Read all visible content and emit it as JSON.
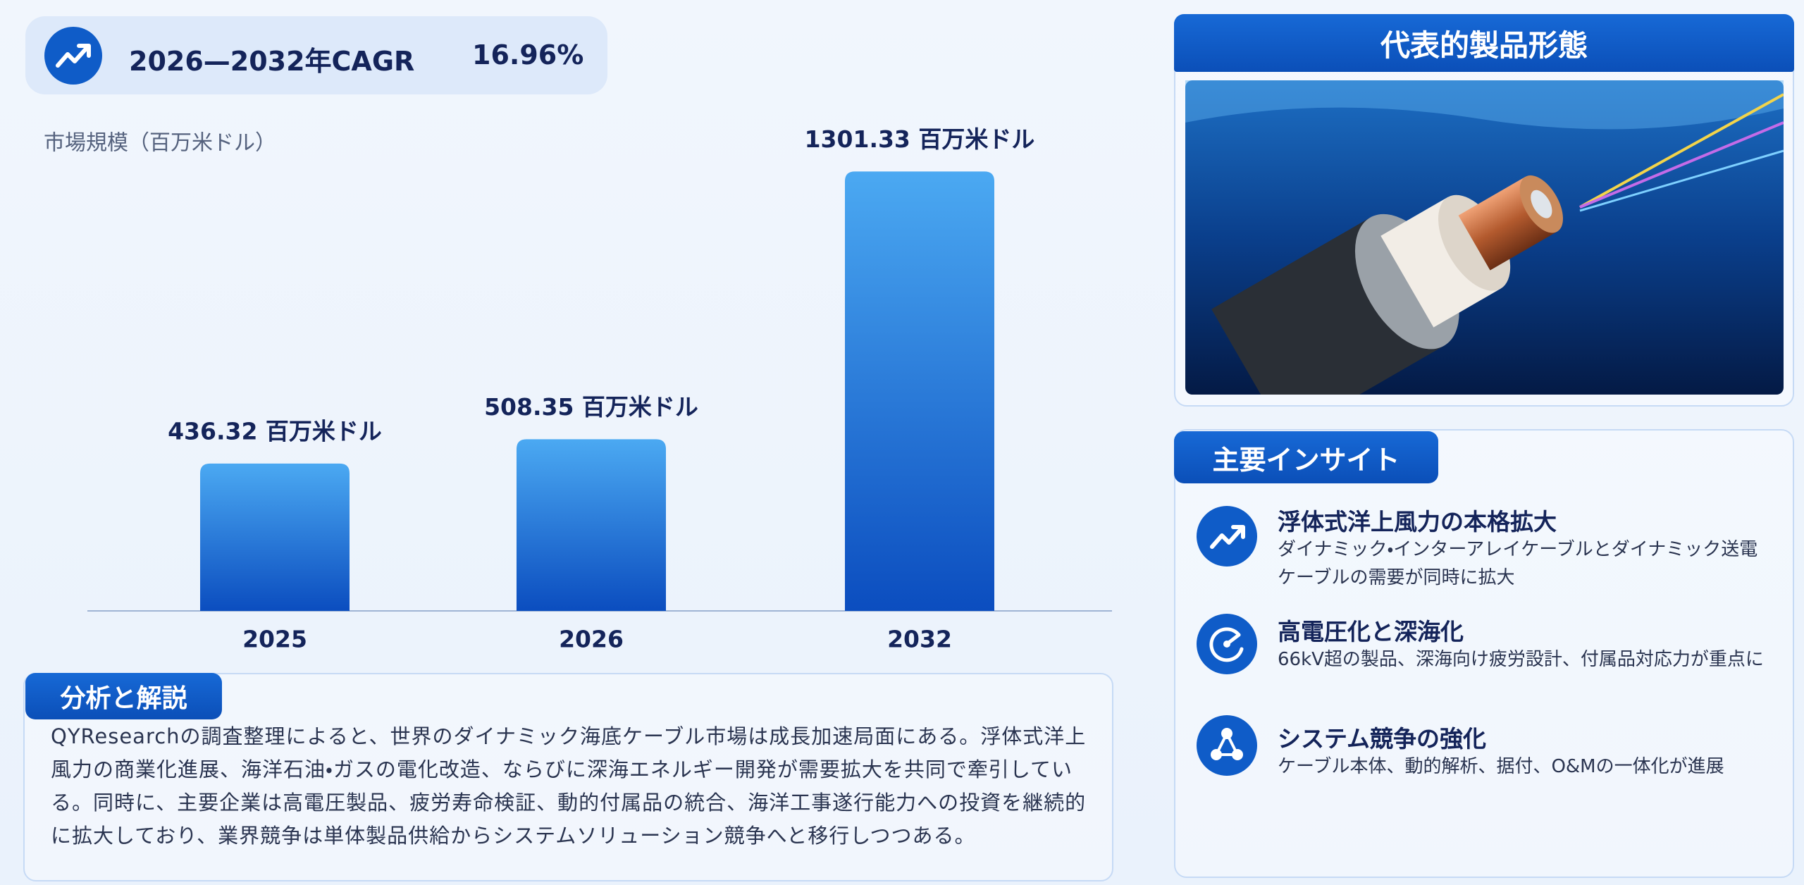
{
  "cagr": {
    "label": "2026—2032年CAGR",
    "value": "16.96%"
  },
  "chart_data": {
    "type": "bar",
    "y_label": "市場規模（百万米ドル）",
    "categories": [
      "2025",
      "2026",
      "2032"
    ],
    "values": [
      436.32,
      508.35,
      1301.33
    ],
    "value_labels": [
      "436.32 百万米ドル",
      "508.35 百万米ドル",
      "1301.33 百万米ドル"
    ],
    "ylim": [
      0,
      1350
    ],
    "gradient": [
      "#4ba9f2",
      "#0b4dbf"
    ]
  },
  "analysis": {
    "title": "分析と解説",
    "text": "QYResearchの調査整理によると、世界のダイナミック海底ケーブル市場は成長加速局面にある。浮体式洋上風力の商業化進展、海洋石油・ガスの電化改造、ならびに深海エネルギー開発が需要拡大を共同で牽引している。同時に、主要企業は高電圧製品、疲労寿命検証、動的付属品の統合、海洋工事遂行能力への投資を継続的に拡大しており、業界競争は単体製品供給からシステムソリューション競争へと移行しつつある。"
  },
  "product": {
    "title": "代表的製品形態"
  },
  "insights": {
    "title": "主要インサイト",
    "items": [
      {
        "title": "浮体式洋上風力の本格拡大",
        "text": "ダイナミック・インターアレイケーブルとダイナミック送電ケーブルの需要が同時に拡大"
      },
      {
        "title": "高電圧化と深海化",
        "text": "66kV超の製品、深海向け疲労設計、付属品対応力が重点に"
      },
      {
        "title": "システム競争の強化",
        "text": "ケーブル本体、動的解析、据付、O&Mの一体化が進展"
      }
    ]
  }
}
